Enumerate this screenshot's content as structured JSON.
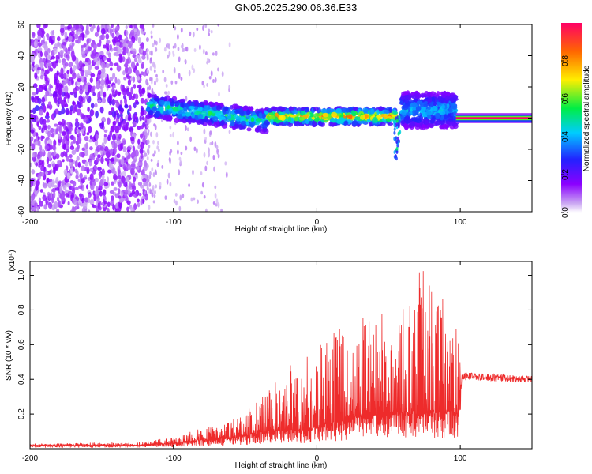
{
  "title": "GN05.2025.290.06.36.E33",
  "colors": {
    "snr_line": "#ee2b2b",
    "background": "#ffffff"
  },
  "chart_data": [
    {
      "type": "heatmap",
      "xlabel": "Height of straight line (km)",
      "ylabel": "Frequency (Hz)",
      "xlim": [
        -200,
        150
      ],
      "ylim": [
        -60,
        60
      ],
      "xticks": [
        "-200",
        "-100",
        "0",
        "100"
      ],
      "yticks": [
        "60",
        "40",
        "20",
        "0",
        "-20",
        "-40",
        "-60"
      ],
      "colorbar": {
        "label": "Normalized spectral amplitude",
        "range": [
          0,
          1
        ],
        "ticks": [
          "0.0",
          "0.2",
          "0.4",
          "0.6",
          "0.8"
        ]
      },
      "segments": [
        {
          "name": "noise",
          "x_range": [
            -200,
            -118
          ],
          "freq_center": 5,
          "amplitude": 0.2
        },
        {
          "name": "sparse-noise",
          "x_range": [
            -118,
            -60
          ],
          "freq_center": 0,
          "amplitude": 0.08
        },
        {
          "name": "signal-band-1",
          "x_range": [
            -118,
            -35
          ],
          "freq_center": 6,
          "amplitude": 0.45
        },
        {
          "name": "signal-band-2",
          "x_range": [
            -35,
            55
          ],
          "freq_center": 1,
          "amplitude": 0.6
        },
        {
          "name": "spike",
          "x_range": [
            54,
            58
          ],
          "freq_center": -10,
          "amplitude": 0.5
        },
        {
          "name": "signal-band-3",
          "x_range": [
            58,
            97
          ],
          "freq_center": 5,
          "amplitude": 0.35
        },
        {
          "name": "steady-tone",
          "x_range": [
            97,
            150
          ],
          "freq_center": 0,
          "amplitude": 1.0
        }
      ]
    },
    {
      "type": "line",
      "xlabel": "Height of straight line (km)",
      "ylabel": "SNR (10 * v/v)",
      "exponent_label": "(x10⁴)",
      "xlim": [
        -200,
        150
      ],
      "ylim": [
        0,
        1.08
      ],
      "xticks": [
        "-200",
        "-100",
        "0",
        "100"
      ],
      "yticks": [
        "0.2",
        "0.4",
        "0.6",
        "0.8",
        "1.0"
      ],
      "series": [
        {
          "name": "SNR",
          "envelope_x": [
            -200,
            -120,
            -100,
            -80,
            -60,
            -50,
            -30,
            -10,
            0,
            10,
            30,
            50,
            60,
            70,
            80,
            90,
            98,
            101,
            150
          ],
          "envelope_base": [
            0.02,
            0.02,
            0.03,
            0.05,
            0.06,
            0.07,
            0.1,
            0.1,
            0.12,
            0.14,
            0.18,
            0.2,
            0.2,
            0.2,
            0.2,
            0.2,
            0.2,
            0.42,
            0.4
          ],
          "envelope_peak": [
            0.03,
            0.04,
            0.07,
            0.12,
            0.16,
            0.22,
            0.38,
            0.6,
            0.65,
            0.68,
            0.78,
            0.86,
            0.95,
            1.08,
            0.95,
            0.85,
            0.75,
            0.44,
            0.42
          ]
        }
      ]
    }
  ]
}
